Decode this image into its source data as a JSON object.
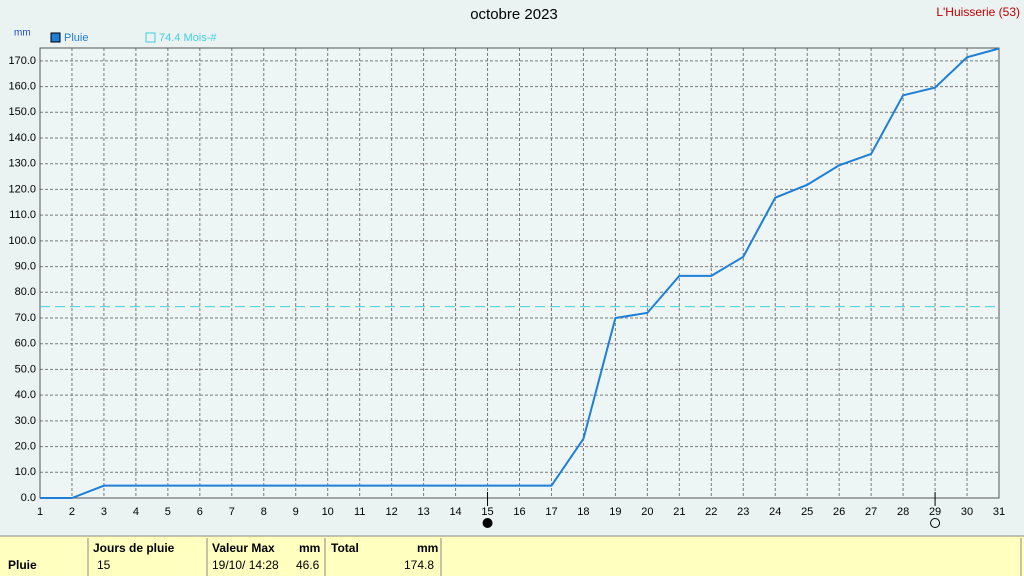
{
  "chart_data": {
    "type": "line",
    "title": "octobre 2023",
    "station": "L'Huisserie (53)",
    "y_unit": "mm",
    "x": [
      1,
      2,
      3,
      4,
      5,
      6,
      7,
      8,
      9,
      10,
      11,
      12,
      13,
      14,
      15,
      16,
      17,
      18,
      19,
      20,
      21,
      22,
      23,
      24,
      25,
      26,
      27,
      28,
      29,
      30,
      31
    ],
    "series": [
      {
        "name": "Pluie",
        "color": "#1e7fd8",
        "values": [
          0,
          0,
          4.8,
          4.8,
          4.8,
          4.8,
          4.8,
          4.8,
          4.8,
          4.8,
          4.8,
          4.8,
          4.8,
          4.8,
          4.8,
          4.8,
          4.8,
          23,
          70,
          72,
          86.4,
          86.4,
          93.8,
          116.8,
          121.8,
          129.4,
          133.8,
          156.6,
          159.6,
          171.4,
          174.8
        ]
      }
    ],
    "reference": {
      "name": "74.4 Mois-#",
      "value": 74.4,
      "color": "#40d0e0"
    },
    "new_moon_day": 15,
    "full_moon_day": 29,
    "xlim": [
      1,
      31
    ],
    "xticks": [
      1,
      2,
      3,
      4,
      5,
      6,
      7,
      8,
      9,
      10,
      11,
      12,
      13,
      14,
      15,
      16,
      17,
      18,
      19,
      20,
      21,
      22,
      23,
      24,
      25,
      26,
      27,
      28,
      29,
      30,
      31
    ],
    "ylim": [
      0,
      175
    ],
    "yticks": [
      {
        "value": 0,
        "label": "0.0"
      },
      {
        "value": 10,
        "label": "10.0"
      },
      {
        "value": 20,
        "label": "20.0"
      },
      {
        "value": 30,
        "label": "30.0"
      },
      {
        "value": 40,
        "label": "40.0"
      },
      {
        "value": 50,
        "label": "50.0"
      },
      {
        "value": 60,
        "label": "60.0"
      },
      {
        "value": 70,
        "label": "70.0"
      },
      {
        "value": 80,
        "label": "80.0"
      },
      {
        "value": 90,
        "label": "90.0"
      },
      {
        "value": 100,
        "label": "100.0"
      },
      {
        "value": 110,
        "label": "110.0"
      },
      {
        "value": 120,
        "label": "120.0"
      },
      {
        "value": 130,
        "label": "130.0"
      },
      {
        "value": 140,
        "label": "140.0"
      },
      {
        "value": 150,
        "label": "150.0"
      },
      {
        "value": 160,
        "label": "160.0"
      },
      {
        "value": 170,
        "label": "170.0"
      }
    ],
    "grid": true
  },
  "table": {
    "headers": [
      "Jours de pluie",
      "Valeur Max",
      "mm",
      "Total",
      "mm"
    ],
    "rows": [
      [
        "Pluie",
        15,
        "19/10/ 14:28",
        46.6,
        174.8
      ]
    ]
  }
}
